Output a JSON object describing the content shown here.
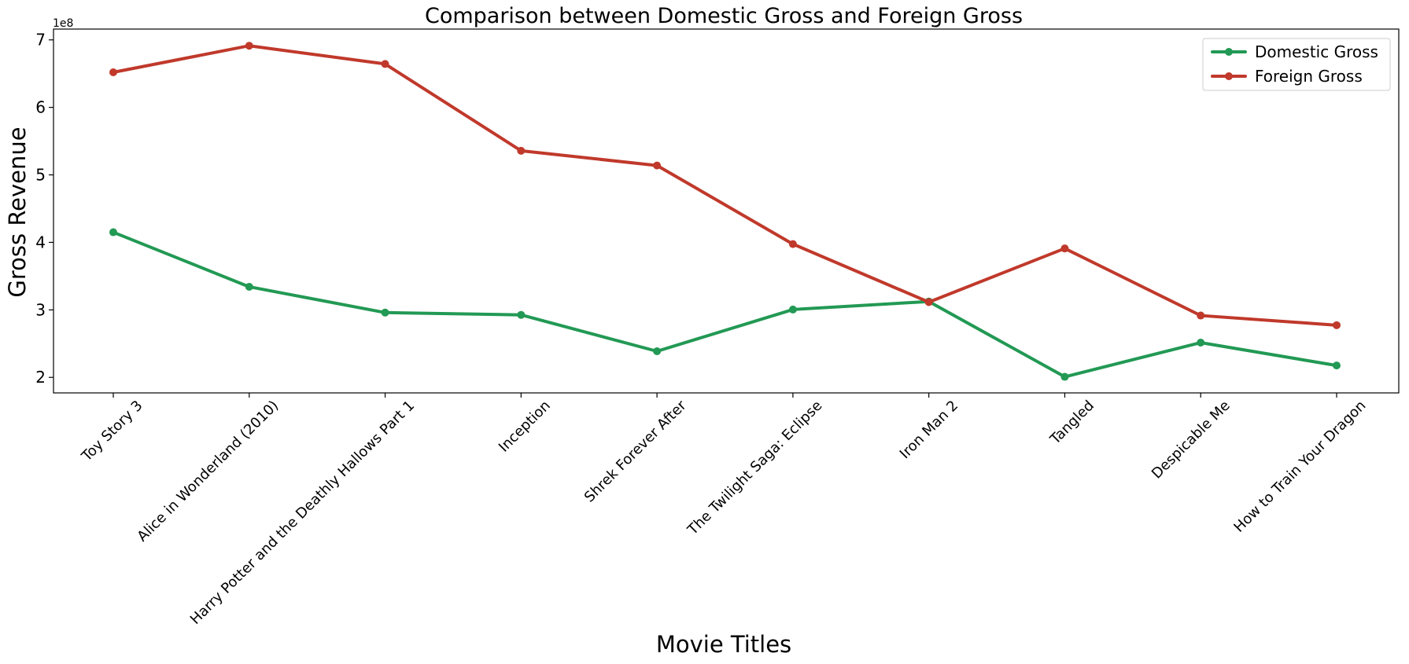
{
  "chart_data": {
    "type": "line",
    "title": "Comparison between Domestic Gross and Foreign Gross",
    "xlabel": "Movie Titles",
    "ylabel": "Gross Revenue",
    "y_offset_label": "1e8",
    "categories": [
      "Toy Story 3",
      "Alice in Wonderland (2010)",
      "Harry Potter and the Deathly Hallows Part 1",
      "Inception",
      "Shrek Forever After",
      "The Twilight Saga: Eclipse",
      "Iron Man 2",
      "Tangled",
      "Despicable Me",
      "How to Train Your Dragon"
    ],
    "series": [
      {
        "name": "Domestic Gross",
        "color": "#229954",
        "values": [
          415000000,
          334200000,
          296000000,
          292600000,
          238700000,
          300500000,
          312400000,
          200800000,
          251500000,
          217600000
        ]
      },
      {
        "name": "Foreign Gross",
        "color": "#c0392b",
        "values": [
          652000000,
          691300000,
          664300000,
          535700000,
          513900000,
          397500000,
          311500000,
          391000000,
          291600000,
          277300000
        ]
      }
    ],
    "yticks": [
      2,
      3,
      4,
      5,
      6,
      7
    ],
    "ylim": [
      177000000,
      716000000
    ],
    "grid": false,
    "legend_position": "upper right"
  }
}
